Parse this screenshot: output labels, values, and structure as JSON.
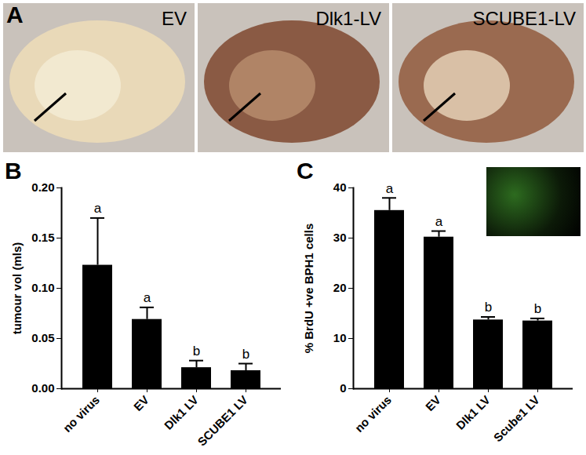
{
  "panel_a": {
    "letter": "A",
    "labels": [
      "EV",
      "Dlk1-LV",
      "SCUBE1-LV"
    ]
  },
  "chart_data": [
    {
      "type": "bar",
      "title": "B",
      "categories": [
        "no virus",
        "EV",
        "Dlk1 LV",
        "SCUBE1 LV"
      ],
      "values": [
        0.123,
        0.069,
        0.021,
        0.018
      ],
      "errors": [
        0.047,
        0.012,
        0.007,
        0.007
      ],
      "annotations": [
        "a",
        "a",
        "b",
        "b"
      ],
      "color": "#000000",
      "y_label": "tumour vol (mls)",
      "ylim": [
        0,
        0.2
      ],
      "yticks": [
        {
          "value": 0,
          "label": "0.00"
        },
        {
          "value": 0.05,
          "label": "0.05"
        },
        {
          "value": 0.1,
          "label": "0.10"
        },
        {
          "value": 0.15,
          "label": "0.15"
        },
        {
          "value": 0.2,
          "label": "0.20"
        }
      ]
    },
    {
      "type": "bar",
      "title": "C",
      "categories": [
        "no virus",
        "EV",
        "Dlk1 LV",
        "Scube1 LV"
      ],
      "values": [
        35.5,
        30.2,
        13.7,
        13.5
      ],
      "errors": [
        2.5,
        1.2,
        0.6,
        0.5
      ],
      "annotations": [
        "a",
        "a",
        "b",
        "b"
      ],
      "color": "#000000",
      "y_label": "% BrdU +ve BPH1 cells",
      "ylim": [
        0,
        40
      ],
      "yticks": [
        0,
        10,
        20,
        30,
        40
      ]
    }
  ]
}
